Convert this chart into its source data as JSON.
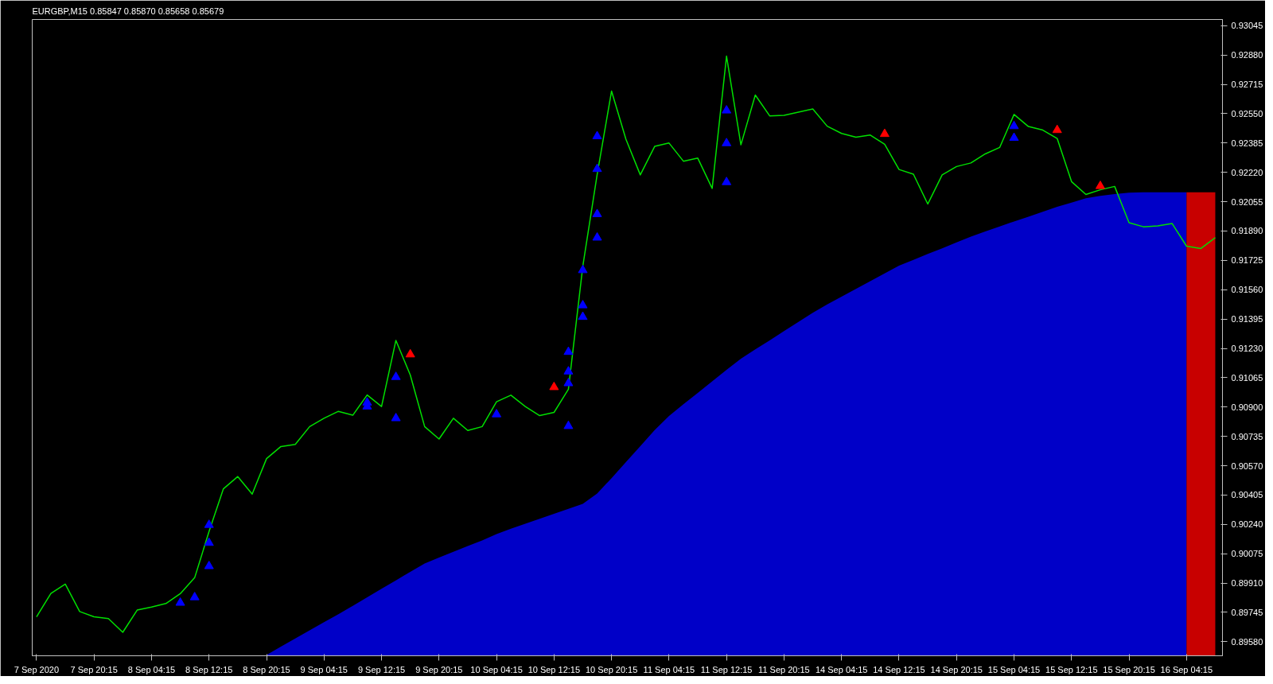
{
  "chart_data": {
    "type": "line",
    "title": "EURGBP,M15  0.85847 0.85870 0.85658 0.85679",
    "categories": [
      "7 Sep 2020",
      null,
      null,
      null,
      "7 Sep 20:15",
      null,
      null,
      null,
      "8 Sep 04:15",
      null,
      null,
      null,
      "8 Sep 12:15",
      null,
      null,
      null,
      "8 Sep 20:15",
      null,
      null,
      null,
      "9 Sep 04:15",
      null,
      null,
      null,
      "9 Sep 12:15",
      null,
      null,
      null,
      "9 Sep 20:15",
      null,
      null,
      null,
      "10 Sep 04:15",
      null,
      null,
      null,
      "10 Sep 12:15",
      null,
      null,
      null,
      "10 Sep 20:15",
      null,
      null,
      null,
      "11 Sep 04:15",
      null,
      null,
      null,
      "11 Sep 12:15",
      null,
      null,
      null,
      "11 Sep 20:15",
      null,
      null,
      null,
      "14 Sep 04:15",
      null,
      null,
      null,
      "14 Sep 12:15",
      null,
      null,
      null,
      "14 Sep 20:15",
      null,
      null,
      null,
      "15 Sep 04:15",
      null,
      null,
      null,
      "15 Sep 12:15",
      null,
      null,
      null,
      "15 Sep 20:15",
      null,
      null,
      null,
      "16 Sep 04:15",
      null,
      null
    ],
    "ylim": [
      0.89501,
      0.9308
    ],
    "yticks": [
      {
        "value": 0.8958,
        "label": "0.89580"
      },
      {
        "value": 0.89745,
        "label": "0.89745"
      },
      {
        "value": 0.8991,
        "label": "0.89910"
      },
      {
        "value": 0.90075,
        "label": "0.90075"
      },
      {
        "value": 0.9024,
        "label": "0.90240"
      },
      {
        "value": 0.90405,
        "label": "0.90405"
      },
      {
        "value": 0.9057,
        "label": "0.90570"
      },
      {
        "value": 0.90735,
        "label": "0.90735"
      },
      {
        "value": 0.909,
        "label": "0.90900"
      },
      {
        "value": 0.91065,
        "label": "0.91065"
      },
      {
        "value": 0.9123,
        "label": "0.91230"
      },
      {
        "value": 0.91395,
        "label": "0.91395"
      },
      {
        "value": 0.9156,
        "label": "0.91560"
      },
      {
        "value": 0.91725,
        "label": "0.91725"
      },
      {
        "value": 0.9189,
        "label": "0.91890"
      },
      {
        "value": 0.92055,
        "label": "0.92055"
      },
      {
        "value": 0.9222,
        "label": "0.92220"
      },
      {
        "value": 0.92385,
        "label": "0.92385"
      },
      {
        "value": 0.9255,
        "label": "0.92550"
      },
      {
        "value": 0.92715,
        "label": "0.92715"
      },
      {
        "value": 0.9288,
        "label": "0.92880"
      },
      {
        "value": 0.93045,
        "label": "0.93045"
      }
    ],
    "grid": false,
    "series": [
      {
        "type": "area",
        "color": "#0000c8",
        "values": [
          null,
          null,
          null,
          null,
          null,
          null,
          null,
          null,
          null,
          null,
          null,
          null,
          null,
          null,
          null,
          null,
          0.89506,
          0.89552,
          0.89598,
          0.89644,
          0.8969,
          0.89735,
          0.89782,
          0.8983,
          0.89878,
          0.89925,
          0.89973,
          0.9002,
          0.90053,
          0.90086,
          0.90118,
          0.9015,
          0.90186,
          0.90216,
          0.90244,
          0.90272,
          0.903,
          0.90327,
          0.90355,
          0.90414,
          0.905,
          0.9059,
          0.9068,
          0.9077,
          0.9085,
          0.90916,
          0.9098,
          0.91044,
          0.91109,
          0.91172,
          0.91224,
          0.91275,
          0.91327,
          0.91379,
          0.9143,
          0.91477,
          0.91521,
          0.91565,
          0.91608,
          0.91652,
          0.91695,
          0.91728,
          0.91761,
          0.91793,
          0.91826,
          0.91859,
          0.91888,
          0.91916,
          0.91944,
          0.91971,
          0.91999,
          0.92026,
          0.9205,
          0.92074,
          0.92088,
          0.92098,
          0.92106,
          0.92108,
          0.92108,
          0.92108,
          0.92108,
          null,
          null
        ]
      },
      {
        "type": "area",
        "color": "#c80000",
        "values": [
          null,
          null,
          null,
          null,
          null,
          null,
          null,
          null,
          null,
          null,
          null,
          null,
          null,
          null,
          null,
          null,
          null,
          null,
          null,
          null,
          null,
          null,
          null,
          null,
          null,
          null,
          null,
          null,
          null,
          null,
          null,
          null,
          null,
          null,
          null,
          null,
          null,
          null,
          null,
          null,
          null,
          null,
          null,
          null,
          null,
          null,
          null,
          null,
          null,
          null,
          null,
          null,
          null,
          null,
          null,
          null,
          null,
          null,
          null,
          null,
          null,
          null,
          null,
          null,
          null,
          null,
          null,
          null,
          null,
          null,
          null,
          null,
          null,
          null,
          null,
          null,
          null,
          null,
          null,
          null,
          0.92108,
          0.92108,
          0.92108
        ]
      },
      {
        "color": "#00e000",
        "values": [
          0.8972,
          0.89852,
          0.89904,
          0.8975,
          0.8972,
          0.8971,
          0.89633,
          0.89758,
          0.89775,
          0.89795,
          0.8985,
          0.8994,
          0.902,
          0.9044,
          0.90509,
          0.9041,
          0.9061,
          0.90678,
          0.9069,
          0.9079,
          0.90837,
          0.90876,
          0.90854,
          0.90968,
          0.90903,
          0.91275,
          0.9108,
          0.9079,
          0.9072,
          0.90837,
          0.90768,
          0.9079,
          0.9093,
          0.90967,
          0.90903,
          0.90852,
          0.9087,
          0.91,
          0.91691,
          0.92208,
          0.92677,
          0.92407,
          0.92206,
          0.92366,
          0.92385,
          0.92283,
          0.923,
          0.9213,
          0.92874,
          0.92375,
          0.92655,
          0.92538,
          0.92541,
          0.92559,
          0.92577,
          0.9248,
          0.92439,
          0.92418,
          0.9243,
          0.92378,
          0.92236,
          0.9221,
          0.92042,
          0.92206,
          0.92253,
          0.92273,
          0.92324,
          0.9236,
          0.92546,
          0.92478,
          0.92458,
          0.92411,
          0.92168,
          0.92096,
          0.92122,
          0.92141,
          0.91937,
          0.91914,
          0.91919,
          0.91932,
          0.91805,
          0.91792,
          0.91853
        ]
      },
      {
        "type": "scatter",
        "marker": "triangle",
        "color": "#0000ff",
        "values": [
          null,
          null,
          null,
          null,
          null,
          null,
          null,
          null,
          null,
          null,
          0.89799,
          0.8983,
          0.90005,
          null,
          null,
          null,
          null,
          null,
          null,
          null,
          null,
          null,
          null,
          0.90903,
          null,
          0.90837,
          null,
          null,
          null,
          null,
          null,
          null,
          0.90859,
          null,
          null,
          null,
          null,
          0.90793,
          0.91407,
          0.91853,
          null,
          null,
          null,
          null,
          null,
          null,
          null,
          null,
          0.92165,
          null,
          null,
          null,
          null,
          null,
          null,
          null,
          null,
          null,
          null,
          null,
          null,
          null,
          null,
          null,
          null,
          null,
          null,
          null,
          0.92414,
          null,
          null,
          null,
          null,
          null,
          null,
          null,
          null,
          null,
          null,
          null,
          null,
          null,
          null
        ]
      },
      {
        "type": "scatter",
        "marker": "triangle",
        "color": "#0000ff",
        "values": [
          null,
          null,
          null,
          null,
          null,
          null,
          null,
          null,
          null,
          null,
          null,
          null,
          0.90136,
          null,
          null,
          null,
          null,
          null,
          null,
          null,
          null,
          null,
          null,
          0.90925,
          null,
          0.91069,
          null,
          null,
          null,
          null,
          null,
          null,
          null,
          null,
          null,
          null,
          null,
          0.91034,
          0.91472,
          0.91985,
          null,
          null,
          null,
          null,
          null,
          null,
          null,
          null,
          0.92384,
          null,
          null,
          null,
          null,
          null,
          null,
          null,
          null,
          null,
          null,
          null,
          null,
          null,
          null,
          null,
          null,
          null,
          null,
          null,
          0.9248,
          null,
          null,
          null,
          null,
          null,
          null,
          null,
          null,
          null,
          null,
          null,
          null,
          null,
          null
        ]
      },
      {
        "type": "scatter",
        "marker": "triangle",
        "color": "#0000ff",
        "values": [
          null,
          null,
          null,
          null,
          null,
          null,
          null,
          null,
          null,
          null,
          null,
          null,
          0.90237,
          null,
          null,
          null,
          null,
          null,
          null,
          null,
          null,
          null,
          null,
          null,
          null,
          null,
          null,
          null,
          null,
          null,
          null,
          null,
          null,
          null,
          null,
          null,
          null,
          0.911,
          0.9167,
          0.92239,
          null,
          null,
          null,
          null,
          null,
          null,
          null,
          null,
          0.92568,
          null,
          null,
          null,
          null,
          null,
          null,
          null,
          null,
          null,
          null,
          null,
          null,
          null,
          null,
          null,
          null,
          null,
          null,
          null,
          null,
          null,
          null,
          null,
          null,
          null,
          null,
          null,
          null,
          null,
          null,
          null,
          null,
          null,
          null
        ]
      },
      {
        "type": "scatter",
        "marker": "triangle",
        "color": "#0000ff",
        "values": [
          null,
          null,
          null,
          null,
          null,
          null,
          null,
          null,
          null,
          null,
          null,
          null,
          null,
          null,
          null,
          null,
          null,
          null,
          null,
          null,
          null,
          null,
          null,
          null,
          null,
          null,
          null,
          null,
          null,
          null,
          null,
          null,
          null,
          null,
          null,
          null,
          null,
          0.9121,
          null,
          0.92423,
          null,
          null,
          null,
          null,
          null,
          null,
          null,
          null,
          null,
          null,
          null,
          null,
          null,
          null,
          null,
          null,
          null,
          null,
          null,
          null,
          null,
          null,
          null,
          null,
          null,
          null,
          null,
          null,
          null,
          null,
          null,
          null,
          null,
          null,
          null,
          null,
          null,
          null,
          null,
          null,
          null,
          null,
          null
        ]
      },
      {
        "type": "scatter",
        "marker": "triangle",
        "color": "#ff0000",
        "values": [
          null,
          null,
          null,
          null,
          null,
          null,
          null,
          null,
          null,
          null,
          null,
          null,
          null,
          null,
          null,
          null,
          null,
          null,
          null,
          null,
          null,
          null,
          null,
          null,
          null,
          null,
          0.91196,
          null,
          null,
          null,
          null,
          null,
          null,
          null,
          null,
          null,
          0.91012,
          null,
          null,
          null,
          null,
          null,
          null,
          null,
          null,
          null,
          null,
          null,
          null,
          null,
          null,
          null,
          null,
          null,
          null,
          null,
          null,
          null,
          null,
          0.92436,
          null,
          null,
          null,
          null,
          null,
          null,
          null,
          null,
          null,
          null,
          null,
          0.92458,
          null,
          null,
          0.92143,
          null,
          null,
          null,
          null,
          null,
          null,
          null,
          null
        ]
      }
    ]
  }
}
